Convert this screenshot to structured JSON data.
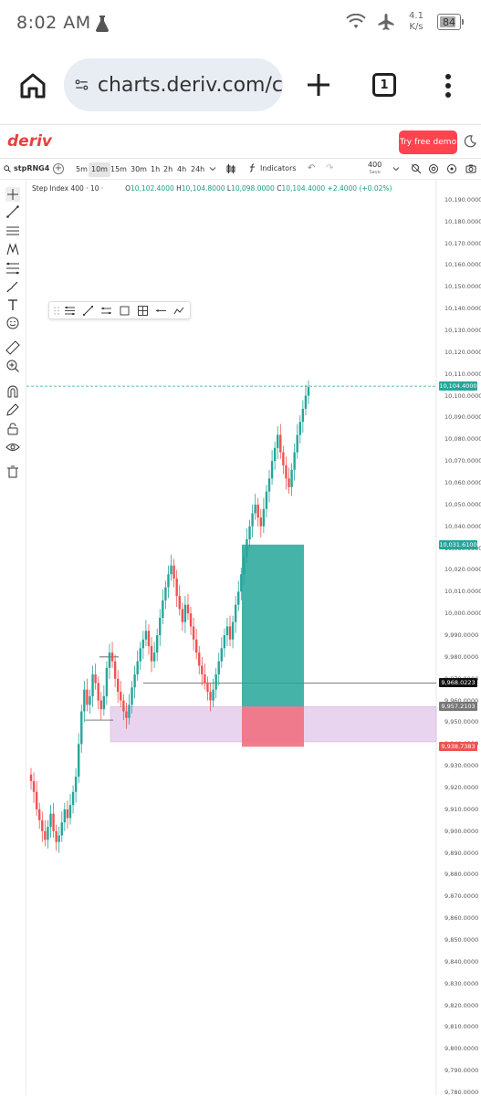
{
  "status_bar": {
    "time": "8:02 AM",
    "net_speed_value": "4.1",
    "net_speed_unit": "K/s",
    "battery": "84",
    "battery_level": 0.84
  },
  "browser": {
    "url": "charts.deriv.com/c",
    "tab_count": "1"
  },
  "deriv": {
    "logo": "deriv",
    "try_demo": "Try free demo"
  },
  "toolbar": {
    "symbol": "stpRNG4",
    "timeframes": [
      "5m",
      "10m",
      "15m",
      "30m",
      "1h",
      "2h",
      "4h",
      "24h"
    ],
    "active_timeframe": "10m",
    "indicators": "Indicators",
    "count_value": "400",
    "count_label": "Save"
  },
  "chart_header": {
    "instrument": "Step Index 400 · 10 ·",
    "open_label": "O",
    "open": "10,102.4000",
    "high_label": "H",
    "high": "10,104.8000",
    "low_label": "L",
    "low": "10,098.0000",
    "close_label": "C",
    "close": "10,104.4000",
    "change": "+2.4000 (+0.02%)"
  },
  "price_tags": {
    "current": "10,104.4000",
    "target": "10,031.6100",
    "line": "9,968.0223",
    "entry": "9,957.2103",
    "stop": "9,938.7383"
  },
  "colors": {
    "brand": "#ff444f",
    "up": "#26a69a",
    "down": "#ef5350",
    "target_zone": "#26a69a",
    "stop_zone": "#f07080",
    "demand_zone": "#e6cdee"
  },
  "chart_data": {
    "type": "candlestick",
    "title": "Step Index 400 · 10 ·",
    "timeframe": "10m",
    "ylim": [
      9780,
      10195
    ],
    "y_ticks": [
      "10,190.0000",
      "10,180.0000",
      "10,170.0000",
      "10,160.0000",
      "10,150.0000",
      "10,140.0000",
      "10,130.0000",
      "10,120.0000",
      "10,110.0000",
      "10,100.0000",
      "10,090.0000",
      "10,080.0000",
      "10,070.0000",
      "10,060.0000",
      "10,050.0000",
      "10,040.0000",
      "10,030.0000",
      "10,020.0000",
      "10,010.0000",
      "10,000.0000",
      "9,990.0000",
      "9,980.0000",
      "9,970.0000",
      "9,960.0000",
      "9,950.0000",
      "9,940.0000",
      "9,930.0000",
      "9,920.0000",
      "9,910.0000",
      "9,900.0000",
      "9,890.0000",
      "9,880.0000",
      "9,870.0000",
      "9,860.0000",
      "9,850.0000",
      "9,840.0000",
      "9,830.0000",
      "9,820.0000",
      "9,810.0000",
      "9,800.0000",
      "9,790.0000",
      "9,780.0000"
    ],
    "close_series": [
      9923,
      9918,
      9910,
      9905,
      9900,
      9896,
      9902,
      9908,
      9900,
      9895,
      9898,
      9904,
      9910,
      9906,
      9912,
      9918,
      9925,
      9940,
      9955,
      9965,
      9958,
      9962,
      9972,
      9968,
      9960,
      9956,
      9962,
      9975,
      9982,
      9978,
      9970,
      9964,
      9960,
      9955,
      9952,
      9958,
      9966,
      9972,
      9978,
      9984,
      9988,
      9992,
      9985,
      9978,
      9982,
      9990,
      9998,
      10006,
      10012,
      10018,
      10022,
      10016,
      10008,
      10002,
      9996,
      10004,
      10000,
      9994,
      9988,
      9982,
      9976,
      9972,
      9968,
      9964,
      9960,
      9965,
      9972,
      9978,
      9984,
      9990,
      9994,
      9988,
      9996,
      10004,
      10010,
      10018,
      10026,
      10034,
      10040,
      10046,
      10050,
      10044,
      10040,
      10048,
      10056,
      10062,
      10070,
      10076,
      10082,
      10074,
      10068,
      10062,
      10058,
      10066,
      10074,
      10082,
      10088,
      10094,
      10100,
      10104
    ],
    "shapes": {
      "target_zone": [
        10031.61,
        9957.21
      ],
      "stop_zone": [
        9957.21,
        9938.74
      ],
      "demand_zone": [
        9957.21,
        9941
      ],
      "horizontal_line": 9968.02,
      "current_price_line": 10104.4
    }
  }
}
